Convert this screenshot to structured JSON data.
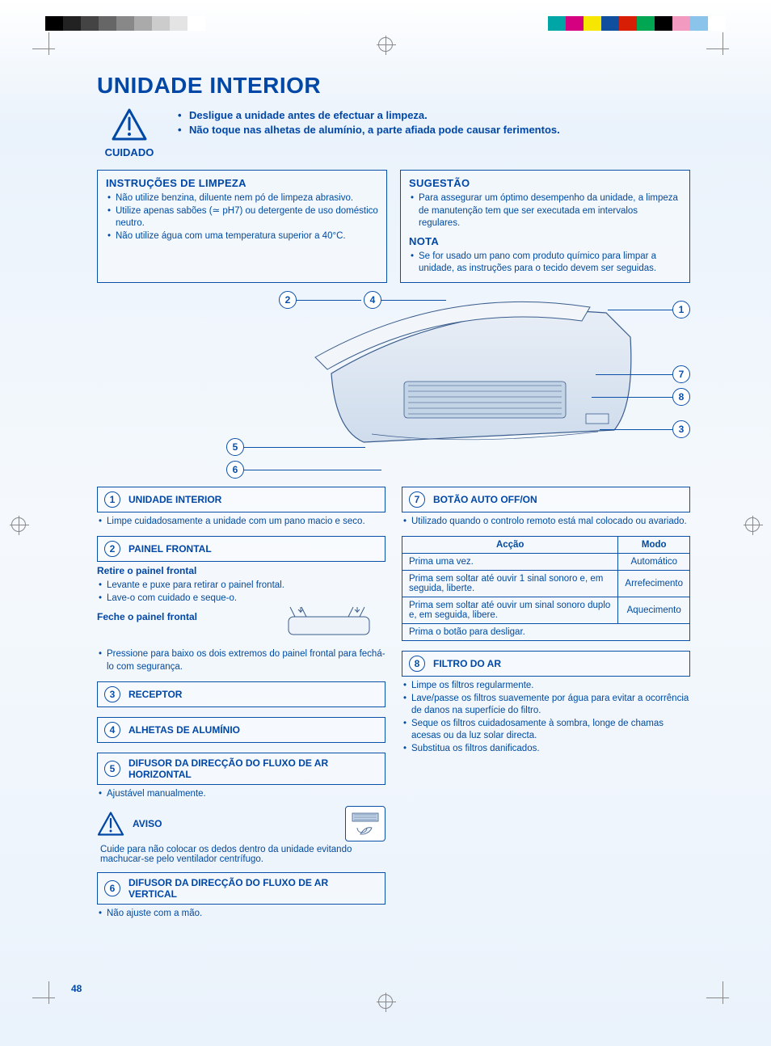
{
  "page_number": "48",
  "main_title": "UNIDADE INTERIOR",
  "colors": {
    "brand": "#0047a6",
    "border": "#0a4fa8",
    "text": "#004a9f",
    "bg_top": "#eaf2fb"
  },
  "left_colorbar": [
    "#000000",
    "#222222",
    "#444444",
    "#666666",
    "#888888",
    "#aaaaaa",
    "#cccccc",
    "#e4e4e4",
    "#ffffff"
  ],
  "right_colorbar": [
    "#00a6a6",
    "#d4007f",
    "#f7e600",
    "#104f9e",
    "#d81e05",
    "#00a651",
    "#000000",
    "#f29ac0",
    "#8bc4ea",
    "#ffffff"
  ],
  "cuidado": {
    "label": "CUIDADO",
    "bullets": [
      "Desligue a unidade antes de efectuar a limpeza.",
      "Não toque nas alhetas de alumínio, a parte afiada pode causar ferimentos."
    ]
  },
  "left_box": {
    "title": "INSTRUÇÕES DE LIMPEZA",
    "items": [
      "Não utilize benzina, diluente nem pó de limpeza abrasivo.",
      "Utilize apenas sabões (≃ pH7) ou detergente de uso doméstico neutro.",
      "Não utilize água com uma temperatura superior a 40°C."
    ]
  },
  "right_box": {
    "title1": "SUGESTÃO",
    "items1": [
      "Para assegurar um óptimo desempenho da unidade, a limpeza de manutenção tem que ser executada em intervalos regulares."
    ],
    "title2": "NOTA",
    "items2": [
      "Se for usado um pano com produto químico para limpar a unidade, as instruções para o tecido devem ser seguidas."
    ]
  },
  "callouts": {
    "c1": "1",
    "c2": "2",
    "c3": "3",
    "c4": "4",
    "c5": "5",
    "c6": "6",
    "c7": "7",
    "c8": "8"
  },
  "sections": {
    "s1": {
      "num": "1",
      "title": "UNIDADE INTERIOR",
      "items": [
        "Limpe cuidadosamente a unidade com um pano macio e seco."
      ]
    },
    "s2": {
      "num": "2",
      "title": "PAINEL FRONTAL",
      "sub1": "Retire o painel frontal",
      "sub1_items": [
        "Levante e puxe para retirar o painel frontal.",
        "Lave-o com cuidado e seque-o."
      ],
      "sub2": "Feche o painel frontal",
      "sub2_items": [
        "Pressione para baixo os dois extremos do painel frontal para fechá-lo com segurança."
      ]
    },
    "s3": {
      "num": "3",
      "title": "RECEPTOR"
    },
    "s4": {
      "num": "4",
      "title": "ALHETAS DE ALUMÍNIO"
    },
    "s5": {
      "num": "5",
      "title": "DIFUSOR DA DIRECÇÃO DO FLUXO DE AR HORIZONTAL",
      "items": [
        "Ajustável manualmente."
      ],
      "aviso_label": "AVISO",
      "aviso_text": "Cuide para não colocar os dedos dentro da unidade evitando machucar-se pelo ventilador centrífugo."
    },
    "s6": {
      "num": "6",
      "title": "DIFUSOR DA DIRECÇÃO DO FLUXO DE AR VERTICAL",
      "items": [
        "Não ajuste com a mão."
      ]
    },
    "s7": {
      "num": "7",
      "title": "BOTÃO AUTO OFF/ON",
      "items": [
        "Utilizado quando o controlo remoto está mal colocado ou avariado."
      ],
      "table": {
        "head_action": "Acção",
        "head_mode": "Modo",
        "rows": [
          {
            "action": "Prima uma vez.",
            "mode": "Automático"
          },
          {
            "action": "Prima sem soltar até ouvir 1 sinal sonoro e, em seguida, liberte.",
            "mode": "Arrefecimento"
          },
          {
            "action": "Prima sem soltar até ouvir um sinal sonoro duplo e, em seguida, libere.",
            "mode": "Aquecimento"
          },
          {
            "action": "Prima o botão para desligar.",
            "mode": ""
          }
        ]
      }
    },
    "s8": {
      "num": "8",
      "title": "FILTRO DO AR",
      "items": [
        "Limpe os filtros regularmente.",
        "Lave/passe os filtros suavemente por água para evitar a ocorrência de danos na superfície do filtro.",
        "Seque os filtros cuidadosamente à sombra, longe de chamas acesas ou da luz solar directa.",
        "Substitua os filtros danificados."
      ]
    }
  }
}
